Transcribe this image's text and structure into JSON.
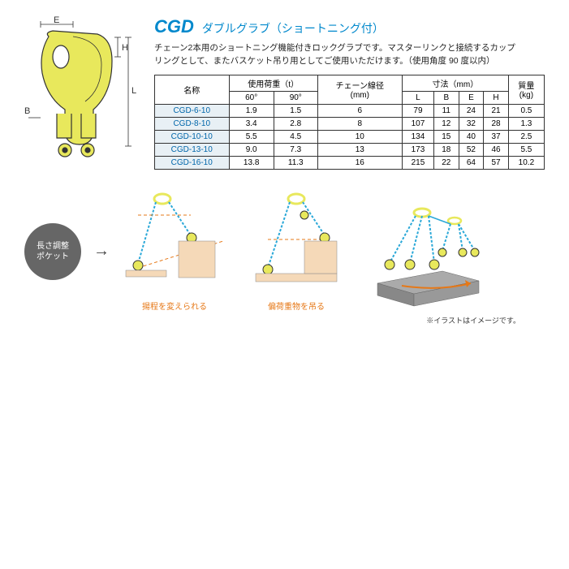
{
  "product": {
    "code": "CGD",
    "name": "ダブルグラブ（ショートニング付）",
    "description_line1": "チェーン2本用のショートニング機能付きロックグラブです。マスターリンクと接続するカップ",
    "description_line2": "リングとして、またバスケット吊り用としてご使用いただけます。（使用角度 90 度以内）"
  },
  "diagram_labels": {
    "E": "E",
    "H": "H",
    "L": "L",
    "B": "B"
  },
  "table": {
    "headers": {
      "name": "名称",
      "load": "使用荷重（t）",
      "load_60": "60°",
      "load_90": "90°",
      "chain": "チェーン線径\n(mm)",
      "dims": "寸法（mm）",
      "L": "L",
      "B": "B",
      "E": "E",
      "H": "H",
      "mass": "質量\n(kg)"
    },
    "rows": [
      {
        "name": "CGD-6-10",
        "l60": "1.9",
        "l90": "1.5",
        "chain": "6",
        "L": "79",
        "B": "11",
        "E": "24",
        "H": "21",
        "mass": "0.5"
      },
      {
        "name": "CGD-8-10",
        "l60": "3.4",
        "l90": "2.8",
        "chain": "8",
        "L": "107",
        "B": "12",
        "E": "32",
        "H": "28",
        "mass": "1.3"
      },
      {
        "name": "CGD-10-10",
        "l60": "5.5",
        "l90": "4.5",
        "chain": "10",
        "L": "134",
        "B": "15",
        "E": "40",
        "H": "37",
        "mass": "2.5"
      },
      {
        "name": "CGD-13-10",
        "l60": "9.0",
        "l90": "7.3",
        "chain": "13",
        "L": "173",
        "B": "18",
        "E": "52",
        "H": "46",
        "mass": "5.5"
      },
      {
        "name": "CGD-16-10",
        "l60": "13.8",
        "l90": "11.3",
        "chain": "16",
        "L": "215",
        "B": "22",
        "E": "64",
        "H": "57",
        "mass": "10.2"
      }
    ]
  },
  "badge": {
    "line1": "長さ調整",
    "line2": "ポケット"
  },
  "captions": {
    "c1": "揚程を変えられる",
    "c2": "偏荷重物を吊る"
  },
  "note": "※イラストはイメージです。",
  "colors": {
    "title": "#0088cc",
    "model_bg": "#e8f0f5",
    "model_text": "#0066aa",
    "caption": "#e67817",
    "badge_bg": "#666666",
    "hook_fill": "#e8e85c",
    "hook_stroke": "#333333",
    "chain": "#2aa8d8",
    "block_light": "#f5d9b8",
    "block_dark": "#8a8a8a",
    "dash": "#e67817"
  }
}
